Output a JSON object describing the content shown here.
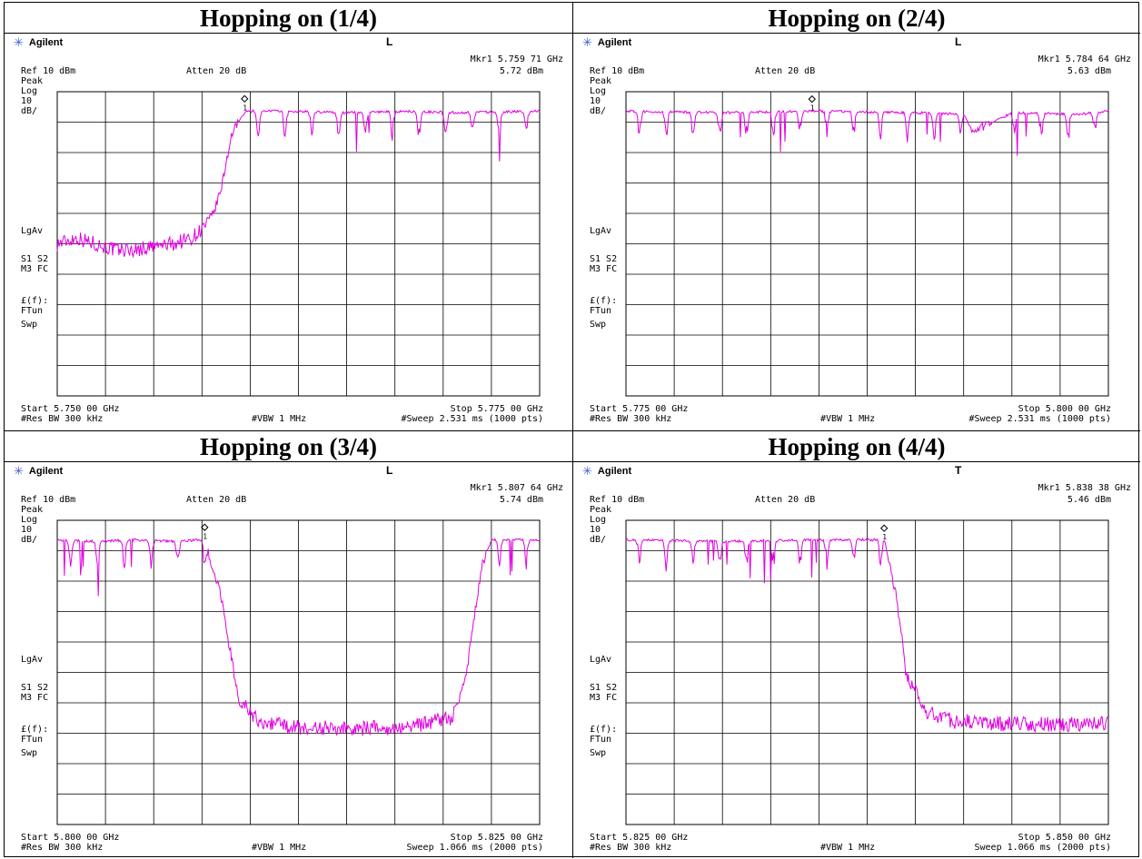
{
  "colors": {
    "trace": "#e000e0",
    "grid": "#000000",
    "logo_star": "#3a5ad0"
  },
  "panels": [
    {
      "title": "Hopping on (1/4)",
      "brand": "Agilent",
      "mode_letter": "L",
      "marker_readout": "Mkr1  5.759 71 GHz",
      "marker_level": "5.72 dBm",
      "ref_level": "Ref 10 dBm",
      "attenuation": "Atten 20 dB",
      "left_labels": [
        "Peak",
        "Log",
        "10",
        "dB/",
        "LgAv",
        "S1  S2",
        "M3  FC",
        "£(f):",
        "FTun",
        "Swp"
      ],
      "start": "Start 5.750 00 GHz",
      "stop": "Stop 5.775 00 GHz",
      "rbw": "#Res BW 300 kHz",
      "vbw": "#VBW 1 MHz",
      "sweep": "#Sweep 2.531 ms (1000 pts)",
      "chart_data": {
        "type": "line",
        "x_range_ghz": [
          5.75,
          5.775
        ],
        "y_range_dbm": [
          -90,
          10
        ],
        "y_scale": "log 10 dB/div",
        "marker": {
          "label": "1",
          "x_ghz": 5.75971,
          "y_dbm": 5.72
        },
        "series": [
          {
            "x": [
              5.75,
              5.751,
              5.752,
              5.753,
              5.754,
              5.755,
              5.756,
              5.757,
              5.758,
              5.7585,
              5.759,
              5.7595,
              5.7598,
              5.762,
              5.765,
              5.768,
              5.771,
              5.775
            ],
            "y": [
              -40.0,
              -38.0,
              -40.0,
              -42.0,
              -42.0,
              -41.0,
              -40.0,
              -38.0,
              -32.0,
              -22.0,
              -5.0,
              2.0,
              4.0,
              4.0,
              3.5,
              4.0,
              3.5,
              4.0
            ]
          }
        ]
      }
    },
    {
      "title": "Hopping on (2/4)",
      "brand": "Agilent",
      "mode_letter": "L",
      "marker_readout": "Mkr1  5.784 64 GHz",
      "marker_level": "5.63 dBm",
      "ref_level": "Ref 10 dBm",
      "attenuation": "Atten 20 dB",
      "left_labels": [
        "Peak",
        "Log",
        "10",
        "dB/",
        "LgAv",
        "S1  S2",
        "M3  FC",
        "£(f):",
        "FTun",
        "Swp"
      ],
      "start": "Start 5.775 00 GHz",
      "stop": "Stop 5.800 00 GHz",
      "rbw": "#Res BW 300 kHz",
      "vbw": "#VBW 1 MHz",
      "sweep": "#Sweep 2.531 ms (1000 pts)",
      "chart_data": {
        "type": "line",
        "x_range_ghz": [
          5.775,
          5.8
        ],
        "y_range_dbm": [
          -90,
          10
        ],
        "y_scale": "log 10 dB/div",
        "marker": {
          "label": "1",
          "x_ghz": 5.78464,
          "y_dbm": 5.63
        },
        "series": [
          {
            "x": [
              5.775,
              5.78,
              5.785,
              5.79,
              5.7925,
              5.793,
              5.795,
              5.7985,
              5.8
            ],
            "y": [
              4.0,
              3.5,
              4.0,
              3.5,
              3.0,
              -3.0,
              3.5,
              3.0,
              4.0
            ]
          }
        ]
      }
    },
    {
      "title": "Hopping on (3/4)",
      "brand": "Agilent",
      "mode_letter": "L",
      "marker_readout": "Mkr1  5.807 64 GHz",
      "marker_level": "5.74 dBm",
      "ref_level": "Ref 10 dBm",
      "attenuation": "Atten 20 dB",
      "left_labels": [
        "Peak",
        "Log",
        "10",
        "dB/",
        "LgAv",
        "S1  S2",
        "M3  FC",
        "£(f):",
        "FTun",
        "Swp"
      ],
      "start": "Start 5.800 00 GHz",
      "stop": "Stop 5.825 00 GHz",
      "rbw": "#Res BW 300 kHz",
      "vbw": "#VBW 1 MHz",
      "sweep": "Sweep 1.066 ms (2000 pts)",
      "chart_data": {
        "type": "line",
        "x_range_ghz": [
          5.8,
          5.825
        ],
        "y_range_dbm": [
          -90,
          10
        ],
        "y_scale": "log 10 dB/div",
        "marker": {
          "label": "1",
          "x_ghz": 5.80764,
          "y_dbm": 5.74
        },
        "series": [
          {
            "x": [
              5.8,
              5.802,
              5.804,
              5.806,
              5.8076,
              5.8085,
              5.809,
              5.8095,
              5.8105,
              5.812,
              5.815,
              5.818,
              5.8205,
              5.8212,
              5.822,
              5.8225,
              5.825
            ],
            "y": [
              4.0,
              3.5,
              4.0,
              3.5,
              4.0,
              -15.0,
              -35.0,
              -50.0,
              -56.0,
              -58.0,
              -58.5,
              -58.0,
              -55.0,
              -40.0,
              -5.0,
              4.0,
              4.0
            ]
          }
        ]
      }
    },
    {
      "title": "Hopping on (4/4)",
      "brand": "Agilent",
      "mode_letter": "T",
      "marker_readout": "Mkr1  5.838 38 GHz",
      "marker_level": "5.46 dBm",
      "ref_level": "Ref 10 dBm",
      "attenuation": "Atten 20 dB",
      "left_labels": [
        "Peak",
        "Log",
        "10",
        "dB/",
        "LgAv",
        "S1  S2",
        "M3  FC",
        "£(f):",
        "FTun",
        "Swp"
      ],
      "start": "Start 5.825 00 GHz",
      "stop": "Stop 5.850 00 GHz",
      "rbw": "#Res BW 300 kHz",
      "vbw": "#VBW 1 MHz",
      "sweep": "Sweep 1.066 ms (2000 pts)",
      "chart_data": {
        "type": "line",
        "x_range_ghz": [
          5.825,
          5.85
        ],
        "y_range_dbm": [
          -90,
          10
        ],
        "y_scale": "log 10 dB/div",
        "marker": {
          "label": "1",
          "x_ghz": 5.83838,
          "y_dbm": 5.46
        },
        "series": [
          {
            "x": [
              5.825,
              5.83,
              5.835,
              5.8384,
              5.839,
              5.8395,
              5.8405,
              5.842,
              5.845,
              5.85
            ],
            "y": [
              4.0,
              3.5,
              4.0,
              4.0,
              -15.0,
              -40.0,
              -53.0,
              -56.0,
              -57.0,
              -57.0
            ]
          }
        ]
      }
    }
  ]
}
